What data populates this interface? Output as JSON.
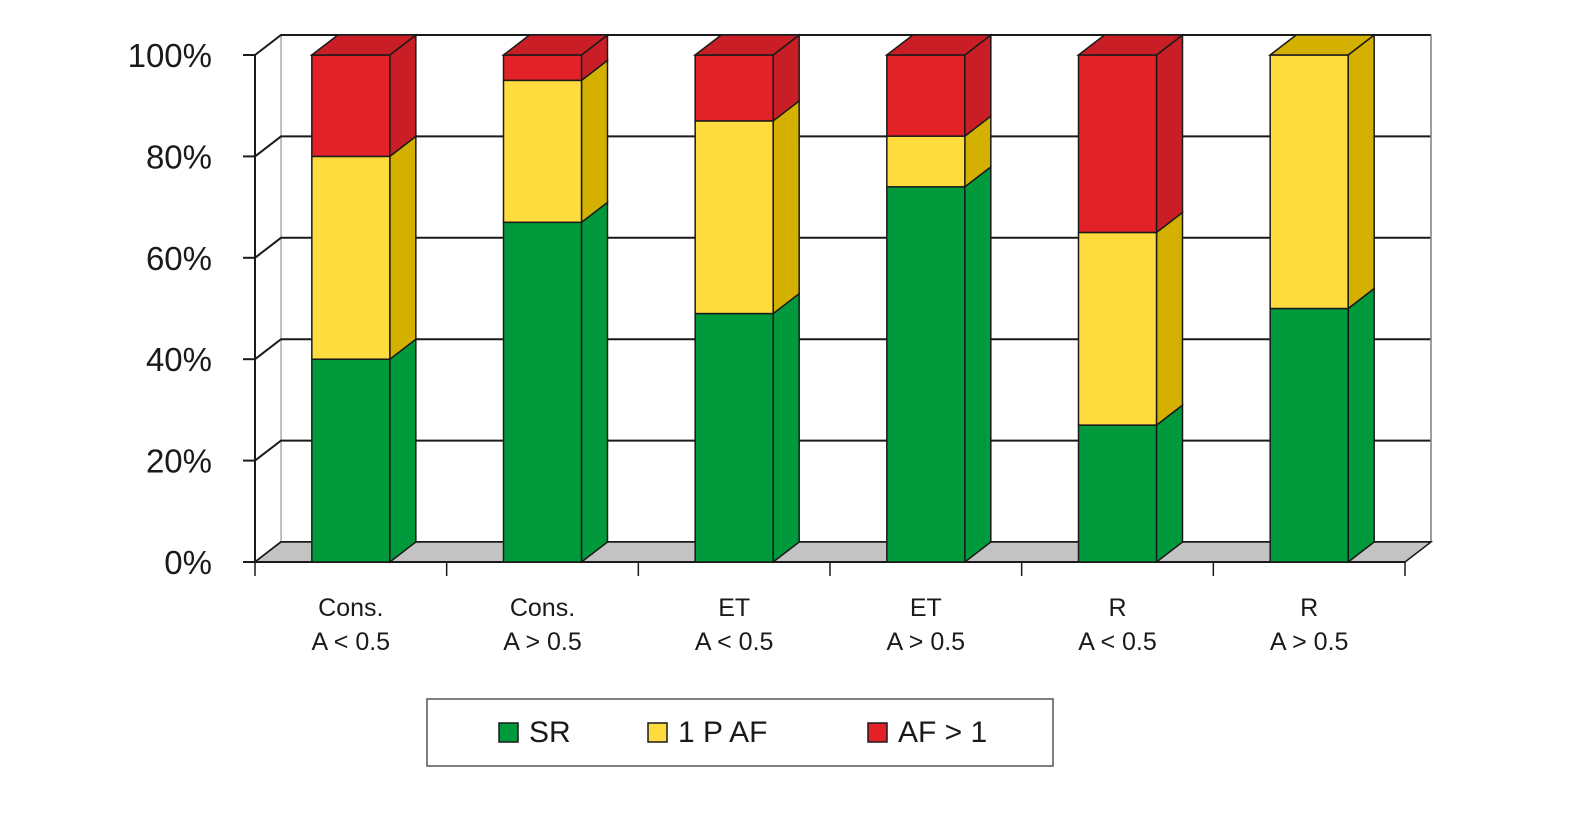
{
  "chart_data": {
    "type": "bar",
    "stacked": true,
    "three_d": true,
    "categories": [
      [
        "Cons.",
        "A < 0.5"
      ],
      [
        "Cons.",
        "A > 0.5"
      ],
      [
        "ET",
        "A < 0.5"
      ],
      [
        "ET",
        "A > 0.5"
      ],
      [
        "R",
        "A < 0.5"
      ],
      [
        "R",
        "A > 0.5"
      ]
    ],
    "series": [
      {
        "name": "SR",
        "values": [
          40,
          67,
          49,
          74,
          27,
          50
        ],
        "color": "#009a3c",
        "side_color": "#009a3c"
      },
      {
        "name": "1 P AF",
        "values": [
          40,
          28,
          38,
          10,
          38,
          50
        ],
        "color": "#fedc3e",
        "side_color": "#d4b000"
      },
      {
        "name": "AF > 1",
        "values": [
          20,
          5,
          13,
          16,
          35,
          0
        ],
        "color": "#e32228",
        "side_color": "#c91e26"
      }
    ],
    "ylim": [
      0,
      100
    ],
    "yticks": [
      "0%",
      "20%",
      "40%",
      "60%",
      "80%",
      "100%"
    ],
    "grid": true,
    "legend_position": "bottom"
  }
}
